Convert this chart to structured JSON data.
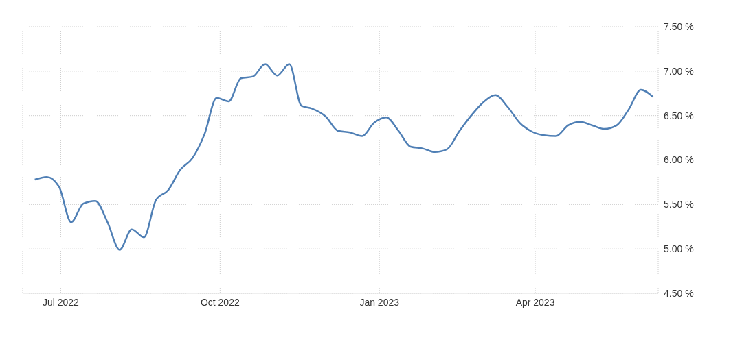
{
  "chart_data": {
    "type": "line",
    "x": [
      "2022-06-16",
      "2022-06-23",
      "2022-06-30",
      "2022-07-07",
      "2022-07-14",
      "2022-07-21",
      "2022-07-28",
      "2022-08-04",
      "2022-08-11",
      "2022-08-18",
      "2022-08-25",
      "2022-09-01",
      "2022-09-08",
      "2022-09-15",
      "2022-09-22",
      "2022-09-29",
      "2022-10-06",
      "2022-10-13",
      "2022-10-20",
      "2022-10-27",
      "2022-11-03",
      "2022-11-10",
      "2022-11-17",
      "2022-11-23",
      "2022-12-01",
      "2022-12-08",
      "2022-12-15",
      "2022-12-22",
      "2022-12-29",
      "2023-01-05",
      "2023-01-12",
      "2023-01-19",
      "2023-01-26",
      "2023-02-02",
      "2023-02-09",
      "2023-02-16",
      "2023-02-23",
      "2023-03-02",
      "2023-03-09",
      "2023-03-16",
      "2023-03-23",
      "2023-03-30",
      "2023-04-06",
      "2023-04-13",
      "2023-04-20",
      "2023-04-27",
      "2023-05-04",
      "2023-05-11",
      "2023-05-18",
      "2023-05-25",
      "2023-06-01",
      "2023-06-08"
    ],
    "series": [
      {
        "color": "#4f7fb5",
        "values": [
          5.78,
          5.81,
          5.7,
          5.3,
          5.51,
          5.54,
          5.3,
          4.99,
          5.22,
          5.13,
          5.55,
          5.66,
          5.89,
          6.02,
          6.29,
          6.7,
          6.66,
          6.92,
          6.94,
          7.08,
          6.95,
          7.08,
          6.61,
          6.58,
          6.49,
          6.33,
          6.31,
          6.27,
          6.42,
          6.48,
          6.33,
          6.15,
          6.13,
          6.09,
          6.12,
          6.32,
          6.5,
          6.65,
          6.73,
          6.6,
          6.42,
          6.32,
          6.28,
          6.27,
          6.39,
          6.43,
          6.39,
          6.35,
          6.39,
          6.57,
          6.79,
          6.71
        ]
      }
    ],
    "xlim": [
      "2022-06-09",
      "2023-06-11"
    ],
    "xticks": [
      {
        "value": "2022-07-01",
        "label": "Jul 2022"
      },
      {
        "value": "2022-10-01",
        "label": "Oct 2022"
      },
      {
        "value": "2023-01-01",
        "label": "Jan 2023"
      },
      {
        "value": "2023-04-01",
        "label": "Apr 2023"
      }
    ],
    "ylim": [
      4.5,
      7.5
    ],
    "yticks": [
      {
        "value": 4.5,
        "label": "4.50 %"
      },
      {
        "value": 5,
        "label": "5.00 %"
      },
      {
        "value": 5.5,
        "label": "5.50 %"
      },
      {
        "value": 6,
        "label": "6.00 %"
      },
      {
        "value": 6.5,
        "label": "6.50 %"
      },
      {
        "value": 7,
        "label": "7.00 %"
      },
      {
        "value": 7.5,
        "label": "7.50 %"
      }
    ],
    "grid": true,
    "marker": "none",
    "line_style": "solid"
  }
}
